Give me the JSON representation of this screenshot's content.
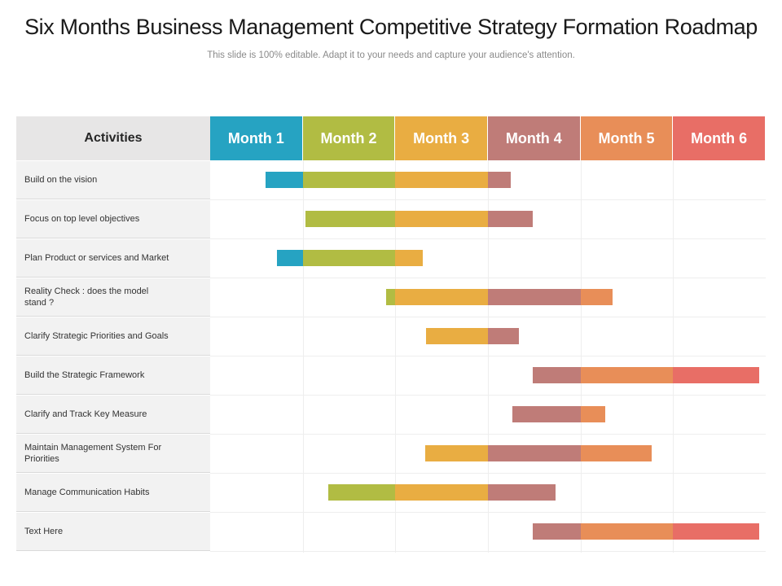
{
  "title": "Six Months Business Management Competitive Strategy Formation Roadmap",
  "subtitle": "This slide is 100% editable. Adapt it to your needs and capture your audience's attention.",
  "activities_header": "Activities",
  "months": [
    {
      "label": "Month 1",
      "color": "#26a3c2"
    },
    {
      "label": "Month 2",
      "color": "#b1bc43"
    },
    {
      "label": "Month 3",
      "color": "#e9ad42"
    },
    {
      "label": "Month 4",
      "color": "#bf7c78"
    },
    {
      "label": "Month 5",
      "color": "#e88e58"
    },
    {
      "label": "Month 6",
      "color": "#e86e66"
    }
  ],
  "rows": [
    {
      "label": "Build on the vision",
      "start": 0.6,
      "end": 3.25
    },
    {
      "label": "Focus on top level objectives",
      "start": 1.03,
      "end": 3.48
    },
    {
      "label": "Plan Product or services and Market",
      "start": 0.72,
      "end": 2.3
    },
    {
      "label": "Reality Check : does the model stand ?",
      "start": 1.9,
      "end": 4.35
    },
    {
      "label": "Clarify Strategic Priorities and Goals",
      "start": 2.33,
      "end": 3.33
    },
    {
      "label": "Build the Strategic Framework",
      "start": 3.48,
      "end": 5.93
    },
    {
      "label": "Clarify and Track Key Measure",
      "start": 3.26,
      "end": 4.27
    },
    {
      "label": "Maintain Management System For Priorities",
      "start": 2.32,
      "end": 4.77
    },
    {
      "label": "Manage Communication  Habits",
      "start": 1.28,
      "end": 3.73
    },
    {
      "label": "Text Here",
      "start": 3.48,
      "end": 5.93
    }
  ]
}
